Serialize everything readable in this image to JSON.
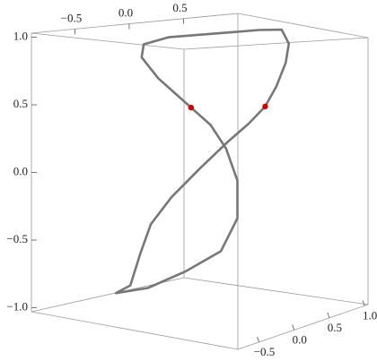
{
  "chart_data": {
    "type": "line3d",
    "xlim": [
      -0.9,
      1.0
    ],
    "ylim": [
      -0.8,
      1.05
    ],
    "zlim": [
      -1.03,
      1.03
    ],
    "xticks": [
      {
        "value": -0.5,
        "label": "−0.5"
      },
      {
        "value": 0,
        "label": "0.0"
      },
      {
        "value": 0.5,
        "label": "0.5"
      }
    ],
    "yticks": [
      {
        "value": -0.5,
        "label": "−0.5"
      },
      {
        "value": 0,
        "label": "0.0"
      },
      {
        "value": 0.5,
        "label": "0.5"
      },
      {
        "value": 1,
        "label": "1.0"
      }
    ],
    "zticks": [
      {
        "value": -1,
        "label": "−1.0"
      },
      {
        "value": -0.5,
        "label": "−0.5"
      },
      {
        "value": 0,
        "label": "0.0"
      },
      {
        "value": 0.5,
        "label": "0.5"
      },
      {
        "value": 1,
        "label": "1.0"
      }
    ],
    "series": [
      {
        "color": "#777777",
        "x": [
          0.65,
          0.76,
          0.85,
          0.88,
          0.81,
          0.59,
          0.19,
          -0.29,
          -0.53,
          -0.55,
          -0.39,
          -0.07,
          0.12,
          0.27,
          0.38,
          0.38,
          0.22,
          -0.12,
          -0.49,
          -0.8,
          -0.66,
          -0.56,
          -0.46,
          -0.26,
          0.02,
          0.29,
          0.49,
          0.65
        ],
        "y": [
          0.1,
          0.1,
          0.1,
          0.1,
          0.1,
          0.1,
          0.1,
          0.1,
          0.1,
          0.1,
          0.1,
          0.1,
          0.1,
          0.1,
          0.1,
          0.1,
          0.1,
          0.1,
          0.1,
          0.1,
          0.1,
          0.1,
          0.1,
          0.1,
          0.1,
          0.1,
          0.1,
          0.1
        ],
        "z": [
          0.48,
          0.62,
          0.78,
          0.91,
          1.01,
          1.02,
          1.02,
          1.02,
          0.98,
          0.88,
          0.71,
          0.48,
          0.35,
          0.18,
          -0.05,
          -0.32,
          -0.57,
          -0.75,
          -0.92,
          -1.0,
          -0.92,
          -0.65,
          -0.42,
          -0.2,
          0.03,
          0.23,
          0.36,
          0.48
        ]
      }
    ],
    "points": {
      "color": "#cc0000",
      "x": [
        0.65,
        -0.07
      ],
      "y": [
        0.1,
        0.1
      ],
      "z": [
        0.48,
        0.48
      ]
    }
  }
}
